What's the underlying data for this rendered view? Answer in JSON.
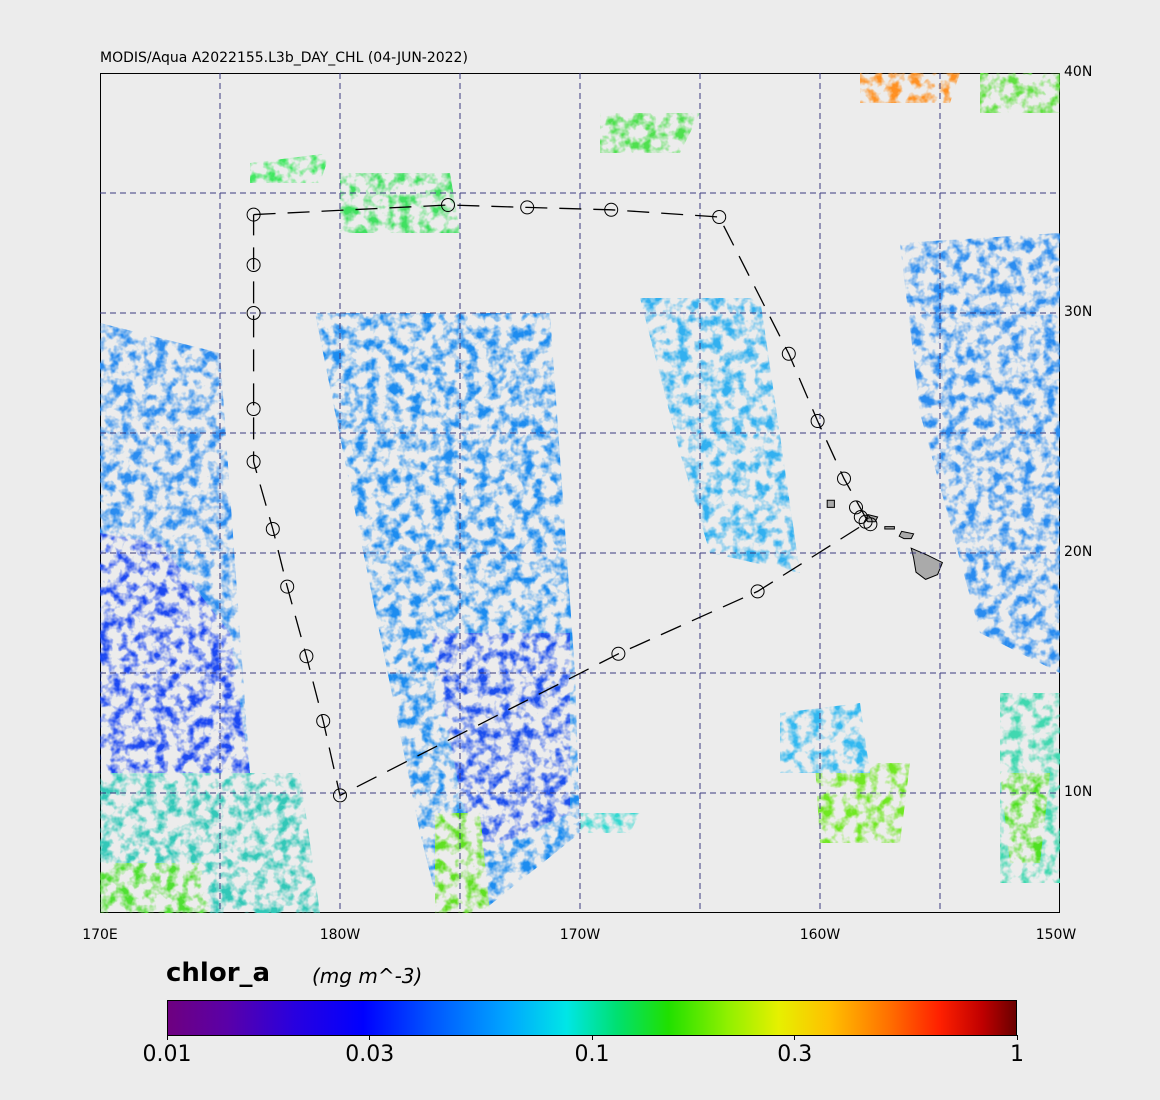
{
  "title": "MODIS/Aqua A2022155.L3b_DAY_CHL (04-JUN-2022)",
  "map": {
    "lon_range": [
      170,
      210
    ],
    "lat_range": [
      5,
      40
    ],
    "lat_labels": [
      {
        "lat": 40,
        "text": "40N"
      },
      {
        "lat": 30,
        "text": "30N"
      },
      {
        "lat": 20,
        "text": "20N"
      },
      {
        "lat": 10,
        "text": "10N"
      }
    ],
    "lon_labels": [
      {
        "lon": 170,
        "text": "170E"
      },
      {
        "lon": 180,
        "text": "180W"
      },
      {
        "lon": 190,
        "text": "170W"
      },
      {
        "lon": 200,
        "text": "160W"
      },
      {
        "lon": 210,
        "text": "150W"
      }
    ],
    "grid_lons": [
      175,
      180,
      185,
      190,
      195,
      200,
      205
    ],
    "grid_lats": [
      35,
      30,
      25,
      20,
      15,
      10
    ],
    "grid_color": "#3a3a80",
    "land_color": "#aaaaaa",
    "track_markers": [
      {
        "lon": 176.4,
        "lat": 34.1
      },
      {
        "lon": 176.4,
        "lat": 32.0
      },
      {
        "lon": 176.4,
        "lat": 30.0
      },
      {
        "lon": 176.4,
        "lat": 26.0
      },
      {
        "lon": 176.4,
        "lat": 23.8
      },
      {
        "lon": 177.2,
        "lat": 21.0
      },
      {
        "lon": 177.8,
        "lat": 18.6
      },
      {
        "lon": 178.6,
        "lat": 15.7
      },
      {
        "lon": 179.3,
        "lat": 13.0
      },
      {
        "lon": 180.0,
        "lat": 9.9
      },
      {
        "lon": 191.6,
        "lat": 15.8
      },
      {
        "lon": 197.4,
        "lat": 18.4
      },
      {
        "lon": 184.5,
        "lat": 34.5
      },
      {
        "lon": 187.8,
        "lat": 34.4
      },
      {
        "lon": 191.3,
        "lat": 34.3
      },
      {
        "lon": 195.8,
        "lat": 34.0
      },
      {
        "lon": 198.7,
        "lat": 28.3
      },
      {
        "lon": 199.9,
        "lat": 25.5
      },
      {
        "lon": 201.0,
        "lat": 23.1
      },
      {
        "lon": 201.5,
        "lat": 21.9
      },
      {
        "lon": 201.7,
        "lat": 21.5
      },
      {
        "lon": 201.9,
        "lat": 21.3
      },
      {
        "lon": 202.1,
        "lat": 21.2
      }
    ],
    "track_path": [
      [
        176.4,
        34.1
      ],
      [
        184.5,
        34.5
      ],
      [
        187.8,
        34.4
      ],
      [
        191.3,
        34.3
      ],
      [
        195.8,
        34.0
      ],
      [
        198.7,
        28.3
      ],
      [
        199.9,
        25.5
      ],
      [
        201.0,
        23.1
      ],
      [
        202.0,
        21.3
      ],
      [
        197.4,
        18.4
      ],
      [
        191.6,
        15.8
      ],
      [
        180.0,
        9.9
      ],
      [
        179.3,
        13.0
      ],
      [
        178.6,
        15.7
      ],
      [
        177.8,
        18.6
      ],
      [
        177.2,
        21.0
      ],
      [
        176.4,
        23.8
      ],
      [
        176.4,
        26.0
      ],
      [
        176.4,
        30.0
      ],
      [
        176.4,
        32.0
      ],
      [
        176.4,
        34.1
      ]
    ]
  },
  "colorbar": {
    "variable": "chlor_a",
    "units": "(mg m^-3)",
    "scale": "log",
    "range": [
      0.01,
      1
    ],
    "ticks": [
      {
        "value": 0.01,
        "text": "0.01"
      },
      {
        "value": 0.03,
        "text": "0.03"
      },
      {
        "value": 0.1,
        "text": "0.1"
      },
      {
        "value": 0.3,
        "text": "0.3"
      },
      {
        "value": 1,
        "text": "1"
      }
    ]
  }
}
